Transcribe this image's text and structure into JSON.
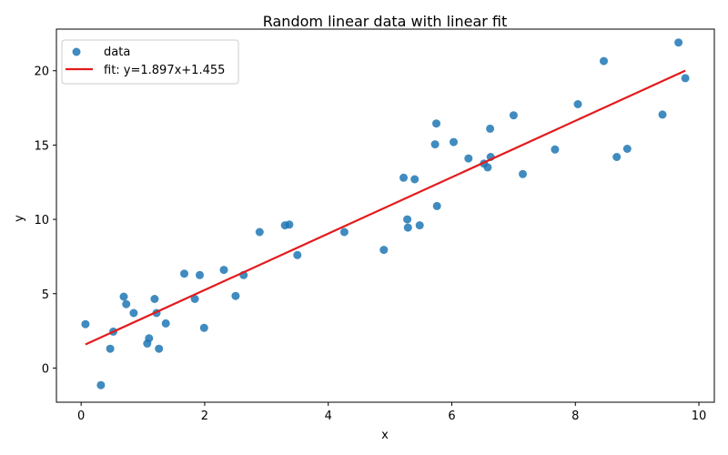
{
  "chart_data": {
    "type": "scatter",
    "title": "Random linear data with linear fit",
    "xlabel": "x",
    "ylabel": "y",
    "xlim": [
      -0.4,
      10.25
    ],
    "ylim": [
      -2.3,
      22.8
    ],
    "xticks": [
      0,
      2,
      4,
      6,
      8,
      10
    ],
    "yticks": [
      0,
      5,
      10,
      15,
      20
    ],
    "grid": false,
    "legend_position": "top-left",
    "series": [
      {
        "name": "data",
        "kind": "scatter",
        "color": "#1f77b4",
        "points": [
          [
            0.07,
            2.95
          ],
          [
            0.32,
            -1.15
          ],
          [
            0.47,
            1.3
          ],
          [
            0.52,
            2.45
          ],
          [
            0.69,
            4.8
          ],
          [
            0.73,
            4.3
          ],
          [
            0.85,
            3.7
          ],
          [
            1.07,
            1.65
          ],
          [
            1.1,
            2.0
          ],
          [
            1.19,
            4.65
          ],
          [
            1.22,
            3.7
          ],
          [
            1.26,
            1.3
          ],
          [
            1.37,
            3.0
          ],
          [
            1.67,
            6.35
          ],
          [
            1.84,
            4.65
          ],
          [
            1.92,
            6.25
          ],
          [
            1.99,
            2.7
          ],
          [
            2.31,
            6.6
          ],
          [
            2.5,
            4.85
          ],
          [
            2.63,
            6.25
          ],
          [
            2.89,
            9.15
          ],
          [
            3.3,
            9.6
          ],
          [
            3.37,
            9.65
          ],
          [
            3.5,
            7.6
          ],
          [
            4.26,
            9.15
          ],
          [
            4.9,
            7.95
          ],
          [
            5.22,
            12.8
          ],
          [
            5.28,
            10.0
          ],
          [
            5.29,
            9.45
          ],
          [
            5.4,
            12.7
          ],
          [
            5.48,
            9.6
          ],
          [
            5.73,
            15.05
          ],
          [
            5.75,
            16.45
          ],
          [
            5.76,
            10.9
          ],
          [
            6.03,
            15.2
          ],
          [
            6.27,
            14.1
          ],
          [
            6.52,
            13.75
          ],
          [
            6.58,
            13.5
          ],
          [
            6.62,
            16.1
          ],
          [
            6.63,
            14.2
          ],
          [
            7.0,
            17.0
          ],
          [
            7.15,
            13.05
          ],
          [
            7.67,
            14.7
          ],
          [
            8.04,
            17.75
          ],
          [
            8.46,
            20.65
          ],
          [
            8.67,
            14.2
          ],
          [
            8.84,
            14.75
          ],
          [
            9.41,
            17.05
          ],
          [
            9.67,
            21.9
          ],
          [
            9.78,
            19.5
          ]
        ]
      },
      {
        "name": "fit: y=1.897x+1.455",
        "kind": "line",
        "color": "#e41a1c",
        "points": [
          [
            0.07,
            1.588
          ],
          [
            9.78,
            20.008
          ]
        ]
      }
    ]
  }
}
